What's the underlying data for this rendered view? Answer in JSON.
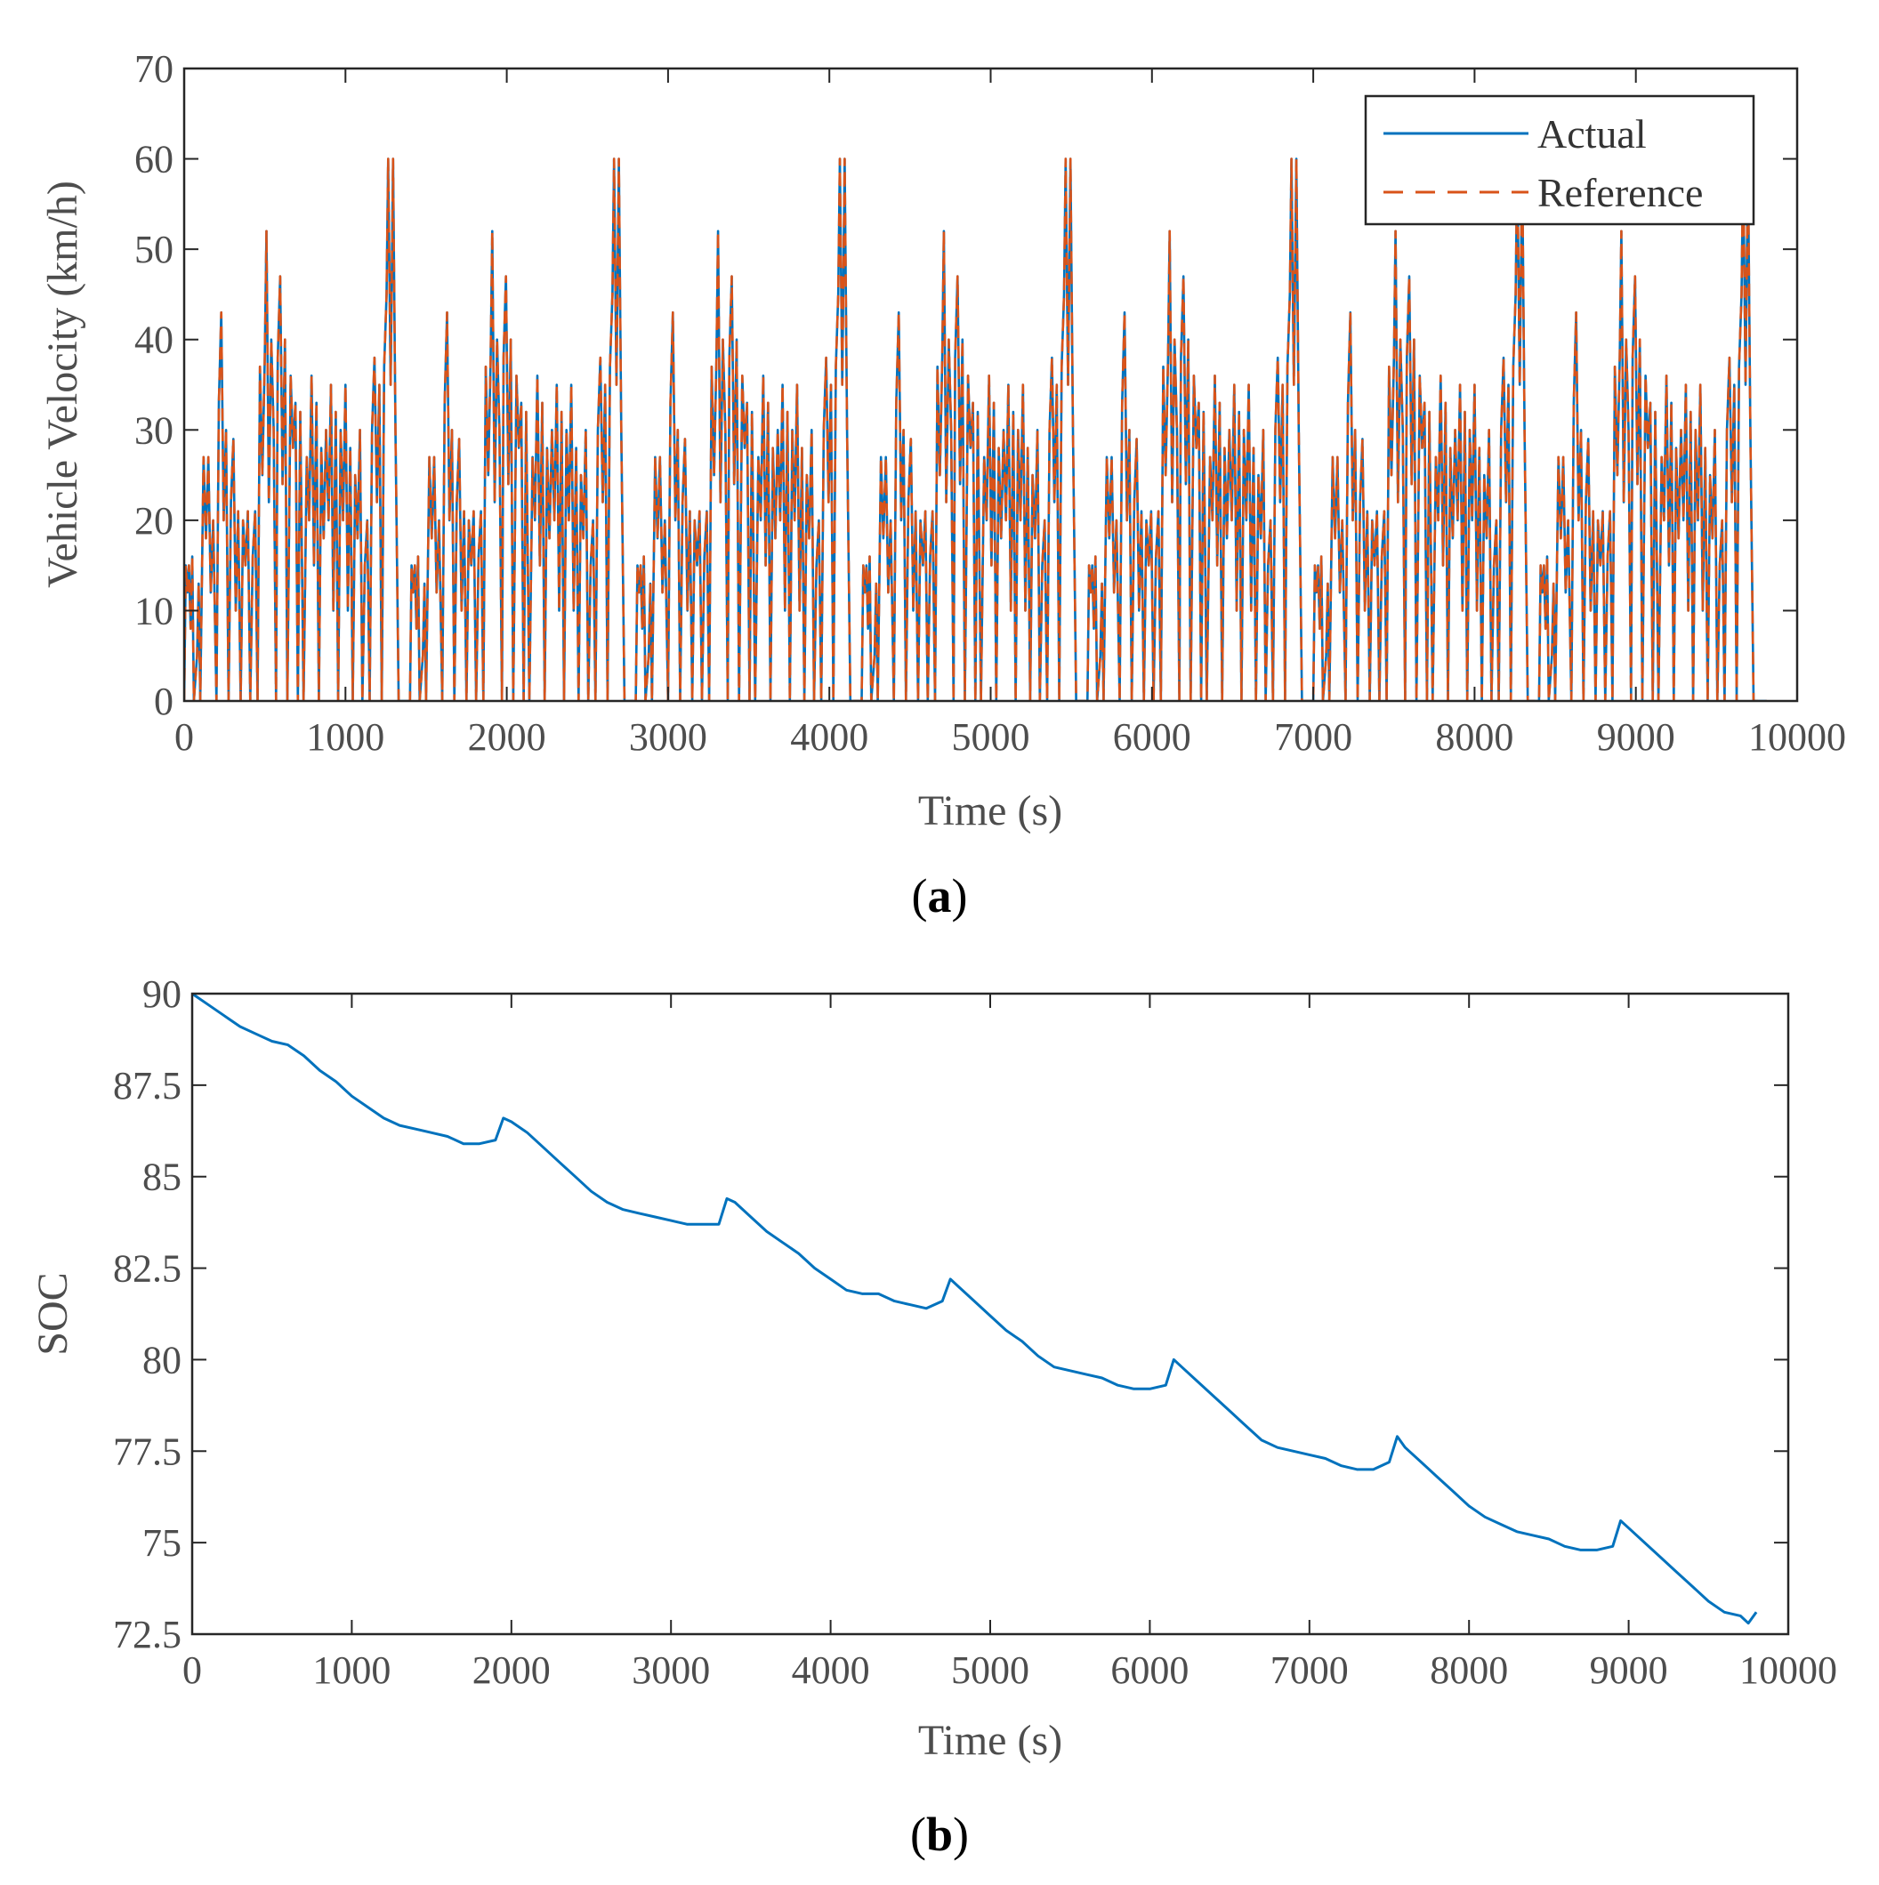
{
  "colors": {
    "actual": "#0072BD",
    "reference": "#D95319",
    "axis": "#262626"
  },
  "chart_data": [
    {
      "id": "a",
      "type": "line",
      "panel_label": {
        "open": "(",
        "letter": "a",
        "close": ")"
      },
      "xlabel": "Time (s)",
      "ylabel": "Vehicle Velocity (km/h)",
      "xlim": [
        0,
        10000
      ],
      "ylim": [
        0,
        70
      ],
      "xticks": [
        "0",
        "1000",
        "2000",
        "3000",
        "4000",
        "5000",
        "6000",
        "7000",
        "8000",
        "9000",
        "10000"
      ],
      "yticks": [
        "0",
        "10",
        "20",
        "30",
        "40",
        "50",
        "60",
        "70"
      ],
      "grid": false,
      "legend": {
        "placement": "top-right",
        "entries": [
          "Actual",
          "Reference"
        ]
      },
      "series": [
        {
          "name": "Actual",
          "style": "solid"
        },
        {
          "name": "Reference",
          "style": "dashed"
        }
      ],
      "cycle_period_s": 1400,
      "cycle_count": 7,
      "cycle_end_s": 9750,
      "cycle_profile": [
        [
          0,
          0
        ],
        [
          10,
          15
        ],
        [
          20,
          12
        ],
        [
          30,
          15
        ],
        [
          40,
          8
        ],
        [
          50,
          16
        ],
        [
          60,
          0
        ],
        [
          80,
          5
        ],
        [
          90,
          13
        ],
        [
          100,
          0
        ],
        [
          120,
          27
        ],
        [
          135,
          18
        ],
        [
          150,
          27
        ],
        [
          165,
          12
        ],
        [
          180,
          20
        ],
        [
          200,
          0
        ],
        [
          215,
          33
        ],
        [
          230,
          43
        ],
        [
          245,
          20
        ],
        [
          260,
          30
        ],
        [
          275,
          0
        ],
        [
          290,
          22
        ],
        [
          305,
          29
        ],
        [
          320,
          10
        ],
        [
          335,
          21
        ],
        [
          350,
          0
        ],
        [
          365,
          20
        ],
        [
          380,
          15
        ],
        [
          395,
          21
        ],
        [
          410,
          0
        ],
        [
          425,
          16
        ],
        [
          440,
          21
        ],
        [
          455,
          0
        ],
        [
          470,
          37
        ],
        [
          485,
          25
        ],
        [
          500,
          38
        ],
        [
          510,
          52
        ],
        [
          525,
          22
        ],
        [
          540,
          40
        ],
        [
          555,
          30
        ],
        [
          570,
          0
        ],
        [
          580,
          38
        ],
        [
          595,
          47
        ],
        [
          610,
          24
        ],
        [
          625,
          40
        ],
        [
          640,
          0
        ],
        [
          660,
          36
        ],
        [
          675,
          28
        ],
        [
          690,
          33
        ],
        [
          705,
          0
        ],
        [
          720,
          32
        ],
        [
          740,
          0
        ],
        [
          760,
          27
        ],
        [
          775,
          20
        ],
        [
          790,
          36
        ],
        [
          805,
          15
        ],
        [
          820,
          33
        ],
        [
          835,
          0
        ],
        [
          850,
          28
        ],
        [
          865,
          18
        ],
        [
          880,
          30
        ],
        [
          895,
          20
        ],
        [
          910,
          35
        ],
        [
          925,
          10
        ],
        [
          940,
          32
        ],
        [
          955,
          0
        ],
        [
          970,
          30
        ],
        [
          985,
          20
        ],
        [
          1000,
          35
        ],
        [
          1015,
          10
        ],
        [
          1030,
          28
        ],
        [
          1045,
          0
        ],
        [
          1060,
          25
        ],
        [
          1075,
          18
        ],
        [
          1090,
          30
        ],
        [
          1105,
          0
        ],
        [
          1120,
          15
        ],
        [
          1135,
          20
        ],
        [
          1150,
          0
        ],
        [
          1165,
          30
        ],
        [
          1180,
          38
        ],
        [
          1195,
          22
        ],
        [
          1210,
          35
        ],
        [
          1225,
          0
        ],
        [
          1240,
          37
        ],
        [
          1255,
          45
        ],
        [
          1265,
          60
        ],
        [
          1280,
          35
        ],
        [
          1295,
          60
        ],
        [
          1310,
          30
        ],
        [
          1330,
          0
        ],
        [
          1400,
          0
        ]
      ],
      "offsets_s": [
        0,
        1400,
        2800,
        4200,
        5600,
        7000,
        8400
      ]
    },
    {
      "id": "b",
      "type": "line",
      "panel_label": {
        "open": "(",
        "letter": "b",
        "close": ")"
      },
      "xlabel": "Time (s)",
      "ylabel": "SOC",
      "xlim": [
        0,
        10000
      ],
      "ylim": [
        72.5,
        90
      ],
      "xticks": [
        "0",
        "1000",
        "2000",
        "3000",
        "4000",
        "5000",
        "6000",
        "7000",
        "8000",
        "9000",
        "10000"
      ],
      "yticks": [
        "72.5",
        "75",
        "77.5",
        "80",
        "82.5",
        "85",
        "87.5",
        "90"
      ],
      "grid": false,
      "series": [
        {
          "name": "SOC",
          "style": "solid",
          "x": [
            0,
            100,
            200,
            300,
            400,
            500,
            600,
            700,
            800,
            900,
            1000,
            1100,
            1200,
            1300,
            1400,
            1500,
            1600,
            1700,
            1800,
            1900,
            1950,
            2000,
            2100,
            2200,
            2300,
            2400,
            2500,
            2600,
            2700,
            2800,
            2900,
            3000,
            3100,
            3200,
            3300,
            3350,
            3400,
            3500,
            3600,
            3700,
            3800,
            3900,
            4000,
            4100,
            4200,
            4300,
            4400,
            4500,
            4600,
            4700,
            4750,
            4800,
            4900,
            5000,
            5100,
            5200,
            5300,
            5400,
            5500,
            5600,
            5700,
            5800,
            5900,
            6000,
            6100,
            6150,
            6200,
            6300,
            6400,
            6500,
            6600,
            6700,
            6800,
            6900,
            7000,
            7100,
            7200,
            7300,
            7400,
            7500,
            7550,
            7600,
            7700,
            7800,
            7900,
            8000,
            8100,
            8200,
            8300,
            8400,
            8500,
            8600,
            8700,
            8800,
            8900,
            8950,
            9000,
            9100,
            9200,
            9300,
            9400,
            9500,
            9600,
            9700,
            9750,
            9800
          ],
          "y": [
            90.0,
            89.7,
            89.4,
            89.1,
            88.9,
            88.7,
            88.6,
            88.3,
            87.9,
            87.6,
            87.2,
            86.9,
            86.6,
            86.4,
            86.3,
            86.2,
            86.1,
            85.9,
            85.9,
            86.0,
            86.6,
            86.5,
            86.2,
            85.8,
            85.4,
            85.0,
            84.6,
            84.3,
            84.1,
            84.0,
            83.9,
            83.8,
            83.7,
            83.7,
            83.7,
            84.4,
            84.3,
            83.9,
            83.5,
            83.2,
            82.9,
            82.5,
            82.2,
            81.9,
            81.8,
            81.8,
            81.6,
            81.5,
            81.4,
            81.6,
            82.2,
            82.0,
            81.6,
            81.2,
            80.8,
            80.5,
            80.1,
            79.8,
            79.7,
            79.6,
            79.5,
            79.3,
            79.2,
            79.2,
            79.3,
            80.0,
            79.8,
            79.4,
            79.0,
            78.6,
            78.2,
            77.8,
            77.6,
            77.5,
            77.4,
            77.3,
            77.1,
            77.0,
            77.0,
            77.2,
            77.9,
            77.6,
            77.2,
            76.8,
            76.4,
            76.0,
            75.7,
            75.5,
            75.3,
            75.2,
            75.1,
            74.9,
            74.8,
            74.8,
            74.9,
            75.6,
            75.4,
            75.0,
            74.6,
            74.2,
            73.8,
            73.4,
            73.1,
            73.0,
            72.8,
            73.1
          ]
        }
      ]
    }
  ]
}
